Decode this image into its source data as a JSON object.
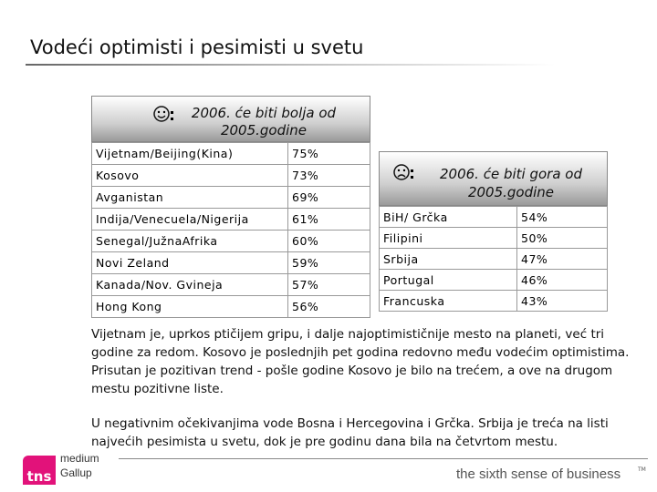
{
  "title": "Vodeći optimisti i pesimisti u svetu",
  "optimists": {
    "header": "2006. će biti bolja od 2005.godine",
    "rows": [
      [
        "Vijetnam/Beijing(Kina)",
        "75%"
      ],
      [
        "Kosovo",
        "73%"
      ],
      [
        "Avganistan",
        "69%"
      ],
      [
        "Indija/Venecuela/Nigerija",
        "61%"
      ],
      [
        "Senegal/JužnaAfrika",
        "60%"
      ],
      [
        "Novi Zeland",
        "59%"
      ],
      [
        "Kanada/Nov. Gvineja",
        "57%"
      ],
      [
        "Hong Kong",
        "56%"
      ]
    ]
  },
  "pessimists": {
    "header": "2006. će biti gora od 2005.godine",
    "rows": [
      [
        "BiH/ Grčka",
        "54%"
      ],
      [
        "Filipini",
        "50%"
      ],
      [
        "Srbija",
        "47%"
      ],
      [
        "Portugal",
        "46%"
      ],
      [
        "Francuska",
        "43%"
      ]
    ]
  },
  "paragraphs": [
    "Vijetnam je, uprkos ptičijem gripu, i dalje najoptimističnije mesto na planeti, već tri godine za redom. Kosovo je poslednjih pet godina redovno među vodećim optimistima. Prisutan je pozitivan trend - pošle godine Kosovo je bilo na trećem, a ove na drugom mestu pozitivne liste.",
    "U negativnim očekivanjima vode Bosna i Hercegovina i Grčka. Srbija je treća na listi najvećih pesimista u svetu, dok je pre godinu dana bila na četvrtom mestu."
  ],
  "footer": {
    "logo": "tns",
    "company": [
      "medium",
      "Gallup"
    ],
    "tagline": "the sixth sense of business",
    "tm": "TM"
  }
}
